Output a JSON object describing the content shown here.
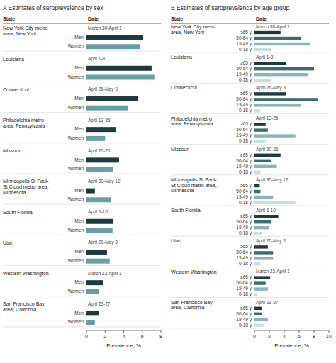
{
  "chart_data": [
    {
      "type": "bar",
      "orientation": "horizontal",
      "title": "A  Estimates of seroprevalence by sex",
      "column_headers": [
        "State",
        "Date"
      ],
      "categories": [
        "New York City metro\narea, New York",
        "Louisiana",
        "Connecticut",
        "Philadelphia metro\narea, Pennsylvania",
        "Missouri",
        "Minneapolis-St Paul-\nSt Cloud metro area,\nMinnesota",
        "South Florida",
        "Utah",
        "Western Washington",
        "San Francisco Bay\narea, California"
      ],
      "dates": [
        "March 30-April 1",
        "April 1-8",
        "April 26-May 3",
        "April 13-25",
        "April 20-26",
        "April 30-May 12",
        "April 6-10",
        "April 20-May 3",
        "March 23-April 1",
        "April 23-27"
      ],
      "series": [
        {
          "name": "Men",
          "color": "#1e3a3f",
          "values": [
            6.1,
            7.0,
            5.5,
            3.2,
            3.5,
            0.9,
            2.9,
            2.2,
            1.8,
            1.3
          ]
        },
        {
          "name": "Women",
          "color": "#6a9ea0",
          "values": [
            5.8,
            7.3,
            4.5,
            2.0,
            2.9,
            2.6,
            2.8,
            2.5,
            1.3,
            0.9
          ]
        }
      ],
      "xlabel": "Prevalence, %",
      "xlim": [
        0,
        8
      ],
      "xticks": [
        0,
        2,
        4,
        6,
        8
      ],
      "grid": false
    },
    {
      "type": "bar",
      "orientation": "horizontal",
      "title": "B  Estimates of seroprevalence by age group",
      "column_headers": [
        "State",
        "Date"
      ],
      "categories": [
        "New York City metro\narea, New York",
        "Louisiana",
        "Connecticut",
        "Philadelphia metro\narea, Pennsylvania",
        "Missouri",
        "Minneapolis-St Paul-\nSt Cloud metro area,\nMinnesota",
        "South Florida",
        "Utah",
        "Western Washington",
        "San Francisco Bay\narea, California"
      ],
      "dates": [
        "March 30-April 1",
        "April 1-8",
        "April 26-May 3",
        "April 13-25",
        "April 20-26",
        "April 30-May 12",
        "April 6-10",
        "April 20-May 3",
        "March 23-April 1",
        "April 23-27"
      ],
      "series": [
        {
          "name": "≥65 y",
          "color": "#1e3a3f",
          "values": [
            3.5,
            4.2,
            4.2,
            1.5,
            3.5,
            0.7,
            3.2,
            1.8,
            2.1,
            1.0
          ]
        },
        {
          "name": "50-64 y",
          "color": "#3d6b6e",
          "values": [
            6.2,
            8.0,
            8.5,
            1.8,
            2.2,
            0.8,
            2.3,
            2.5,
            1.5,
            1.0
          ]
        },
        {
          "name": "19-49 y",
          "color": "#8ab5b8",
          "values": [
            7.5,
            7.2,
            6.3,
            5.5,
            3.0,
            2.5,
            2.0,
            2.5,
            1.8,
            1.8
          ]
        },
        {
          "name": "0-18 y",
          "color": "#c8dfe0",
          "values": [
            2.2,
            2.2,
            0.8,
            1.5,
            0.8,
            5.5,
            1.0,
            0.8,
            0.4,
            1.2
          ]
        }
      ],
      "xlabel": "Prevalence, %",
      "xlim": [
        0,
        10
      ],
      "xticks": [
        0,
        2,
        4,
        6,
        8,
        10
      ],
      "grid": false
    }
  ]
}
